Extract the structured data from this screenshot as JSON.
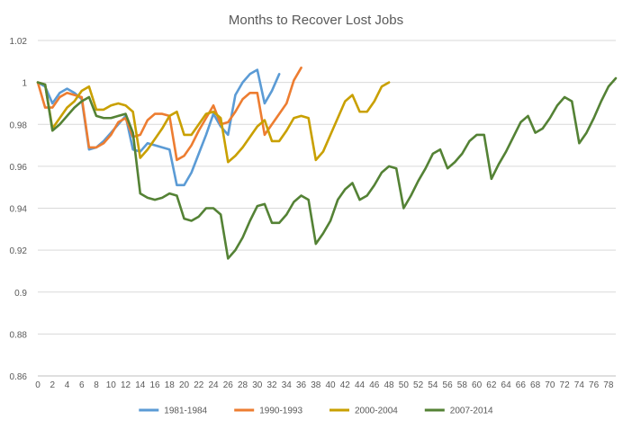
{
  "chart_data": {
    "type": "line",
    "title": "Months to Recover Lost Jobs",
    "xlabel": "",
    "ylabel": "",
    "xlim": [
      0,
      79
    ],
    "ylim": [
      0.86,
      1.02
    ],
    "x_tick_labels": [
      "0",
      "2",
      "4",
      "6",
      "8",
      "10",
      "12",
      "14",
      "16",
      "18",
      "20",
      "22",
      "24",
      "26",
      "28",
      "30",
      "32",
      "34",
      "36",
      "38",
      "40",
      "42",
      "44",
      "46",
      "48",
      "50",
      "52",
      "54",
      "56",
      "58",
      "60",
      "62",
      "64",
      "66",
      "68",
      "70",
      "72",
      "74",
      "76",
      "78"
    ],
    "y_tick_labels": [
      "0.86",
      "0.88",
      "0.9",
      "0.92",
      "0.94",
      "0.96",
      "0.98",
      "1",
      "1.02"
    ],
    "y_ticks": [
      0.86,
      0.88,
      0.9,
      0.92,
      0.94,
      0.96,
      0.98,
      1.0,
      1.02
    ],
    "grid": "horizontal",
    "legend_position": "bottom",
    "series": [
      {
        "name": "1981-1984",
        "color": "#5b9bd5",
        "values": [
          1.0,
          0.998,
          0.99,
          0.995,
          0.997,
          0.995,
          0.992,
          0.968,
          0.969,
          0.972,
          0.976,
          0.98,
          0.984,
          0.968,
          0.967,
          0.971,
          0.97,
          0.969,
          0.968,
          0.951,
          0.951,
          0.957,
          0.966,
          0.975,
          0.985,
          0.979,
          0.975,
          0.994,
          1.0,
          1.004,
          1.006,
          0.99,
          0.996,
          1.004
        ]
      },
      {
        "name": "1990-1993",
        "color": "#ed7d31",
        "values": [
          1.0,
          0.988,
          0.988,
          0.993,
          0.995,
          0.994,
          0.993,
          0.969,
          0.969,
          0.971,
          0.975,
          0.981,
          0.983,
          0.974,
          0.975,
          0.982,
          0.985,
          0.985,
          0.984,
          0.963,
          0.965,
          0.97,
          0.977,
          0.983,
          0.989,
          0.98,
          0.981,
          0.986,
          0.992,
          0.995,
          0.995,
          0.975,
          0.98,
          0.985,
          0.99,
          1.001,
          1.007
        ]
      },
      {
        "name": "2000-2004",
        "color": "#c9a000",
        "values": [
          1.0,
          0.999,
          0.978,
          0.983,
          0.988,
          0.991,
          0.996,
          0.998,
          0.987,
          0.987,
          0.989,
          0.99,
          0.989,
          0.986,
          0.964,
          0.968,
          0.973,
          0.978,
          0.984,
          0.986,
          0.975,
          0.975,
          0.98,
          0.985,
          0.986,
          0.983,
          0.962,
          0.965,
          0.969,
          0.974,
          0.979,
          0.982,
          0.972,
          0.972,
          0.977,
          0.983,
          0.984,
          0.983,
          0.963,
          0.967,
          0.975,
          0.983,
          0.991,
          0.994,
          0.986,
          0.986,
          0.991,
          0.998,
          1.0
        ]
      },
      {
        "name": "2007-2014",
        "color": "#548235",
        "values": [
          1.0,
          0.999,
          0.977,
          0.98,
          0.984,
          0.988,
          0.991,
          0.993,
          0.984,
          0.983,
          0.983,
          0.984,
          0.985,
          0.976,
          0.947,
          0.945,
          0.944,
          0.945,
          0.947,
          0.946,
          0.935,
          0.934,
          0.936,
          0.94,
          0.94,
          0.937,
          0.916,
          0.92,
          0.926,
          0.934,
          0.941,
          0.942,
          0.933,
          0.933,
          0.937,
          0.943,
          0.946,
          0.944,
          0.923,
          0.928,
          0.934,
          0.944,
          0.949,
          0.952,
          0.944,
          0.946,
          0.951,
          0.957,
          0.96,
          0.959,
          0.94,
          0.946,
          0.953,
          0.959,
          0.966,
          0.968,
          0.959,
          0.962,
          0.966,
          0.972,
          0.975,
          0.975,
          0.954,
          0.961,
          0.967,
          0.974,
          0.981,
          0.984,
          0.976,
          0.978,
          0.983,
          0.989,
          0.993,
          0.991,
          0.971,
          0.976,
          0.983,
          0.991,
          0.998,
          1.002
        ]
      }
    ]
  }
}
